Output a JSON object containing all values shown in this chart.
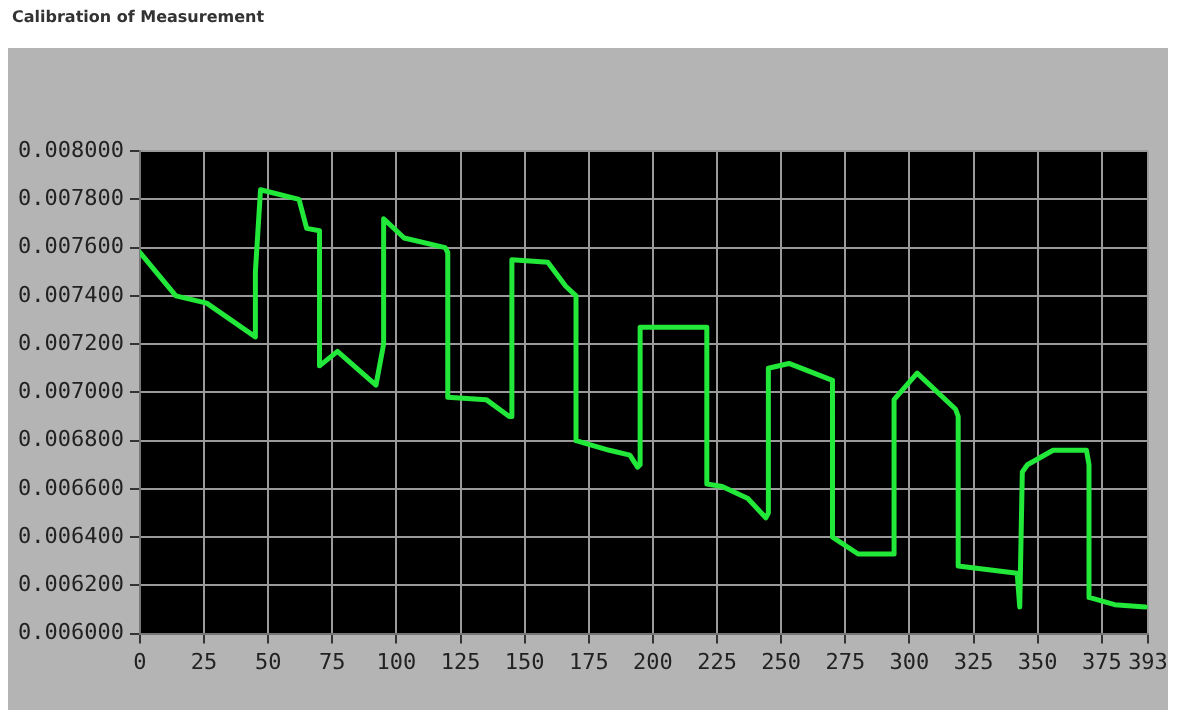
{
  "chart_data": {
    "type": "line",
    "title": "Calibration of Measurement",
    "x": [
      0,
      14,
      26,
      45,
      45,
      47,
      62,
      65,
      70,
      70,
      77,
      92,
      95,
      95,
      103,
      119,
      120,
      120,
      135,
      144,
      145,
      145,
      159,
      166,
      170,
      170,
      183,
      191,
      194,
      195,
      195,
      221,
      221,
      227,
      237,
      244,
      245,
      245,
      253,
      270,
      270,
      280,
      294,
      294,
      303,
      318,
      319,
      319,
      342,
      343,
      344,
      346,
      356,
      369,
      370,
      370,
      380,
      392
    ],
    "series": [
      {
        "color": "#22e83a",
        "values": [
          0.00758,
          0.0074,
          0.00737,
          0.00723,
          0.0075,
          0.00784,
          0.0078,
          0.00768,
          0.00767,
          0.00711,
          0.00717,
          0.00703,
          0.0072,
          0.00772,
          0.00764,
          0.0076,
          0.00758,
          0.00698,
          0.00697,
          0.0069,
          0.0069,
          0.00755,
          0.00754,
          0.00744,
          0.0074,
          0.0068,
          0.00676,
          0.00674,
          0.00669,
          0.0067,
          0.00727,
          0.00727,
          0.00662,
          0.00661,
          0.00656,
          0.00648,
          0.0065,
          0.0071,
          0.00712,
          0.00705,
          0.0064,
          0.00633,
          0.00633,
          0.00697,
          0.00708,
          0.00693,
          0.0069,
          0.00628,
          0.00625,
          0.00611,
          0.00667,
          0.0067,
          0.00676,
          0.00676,
          0.0067,
          0.00615,
          0.00612,
          0.00611
        ]
      }
    ],
    "xlim": [
      0,
      393
    ],
    "xticks": [
      0,
      25,
      50,
      75,
      100,
      125,
      150,
      175,
      200,
      225,
      250,
      275,
      300,
      325,
      350,
      375,
      393
    ],
    "ylim": [
      0.006,
      0.008
    ],
    "yticks": [
      {
        "value": 0.006,
        "label": "0.006000"
      },
      {
        "value": 0.0062,
        "label": "0.006200"
      },
      {
        "value": 0.0064,
        "label": "0.006400"
      },
      {
        "value": 0.0066,
        "label": "0.006600"
      },
      {
        "value": 0.0068,
        "label": "0.006800"
      },
      {
        "value": 0.007,
        "label": "0.007000"
      },
      {
        "value": 0.0072,
        "label": "0.007200"
      },
      {
        "value": 0.0074,
        "label": "0.007400"
      },
      {
        "value": 0.0076,
        "label": "0.007600"
      },
      {
        "value": 0.0078,
        "label": "0.007800"
      },
      {
        "value": 0.008,
        "label": "0.008000"
      }
    ],
    "grid": true,
    "legend": false,
    "marker": "none",
    "line_style": "solid"
  }
}
